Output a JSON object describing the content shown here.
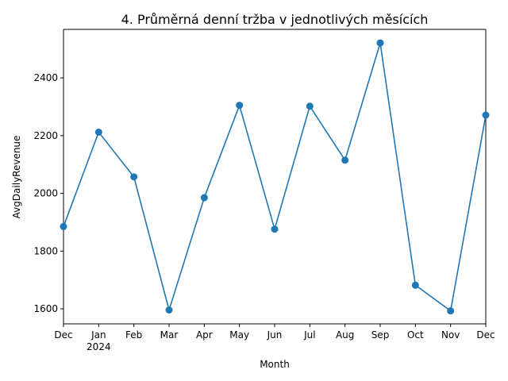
{
  "chart_data": {
    "type": "line",
    "title": "4. Průměrná denní tržba v jednotlivých měsících",
    "xlabel": "Month",
    "ylabel": "AvgDailyRevenue",
    "x": [
      "2023-12",
      "2024-01",
      "2024-02",
      "2024-03",
      "2024-04",
      "2024-05",
      "2024-06",
      "2024-07",
      "2024-08",
      "2024-09",
      "2024-10",
      "2024-11",
      "2024-12"
    ],
    "x_tick_labels": [
      "Dec",
      "Jan",
      "Feb",
      "Mar",
      "Apr",
      "May",
      "Jun",
      "Jul",
      "Aug",
      "Sep",
      "Oct",
      "Nov",
      "Dec"
    ],
    "year_label": "2024",
    "series": [
      {
        "values": [
          1885,
          2212,
          2057,
          1596,
          1985,
          2305,
          1876,
          2302,
          2115,
          2521,
          1682,
          1593,
          2271
        ],
        "color": "#1f77b4",
        "marker": "circle"
      }
    ],
    "ylim": [
      1548,
      2568
    ],
    "y_ticks": [
      1600,
      1800,
      2000,
      2200,
      2400
    ],
    "grid": false,
    "legend": "none"
  }
}
